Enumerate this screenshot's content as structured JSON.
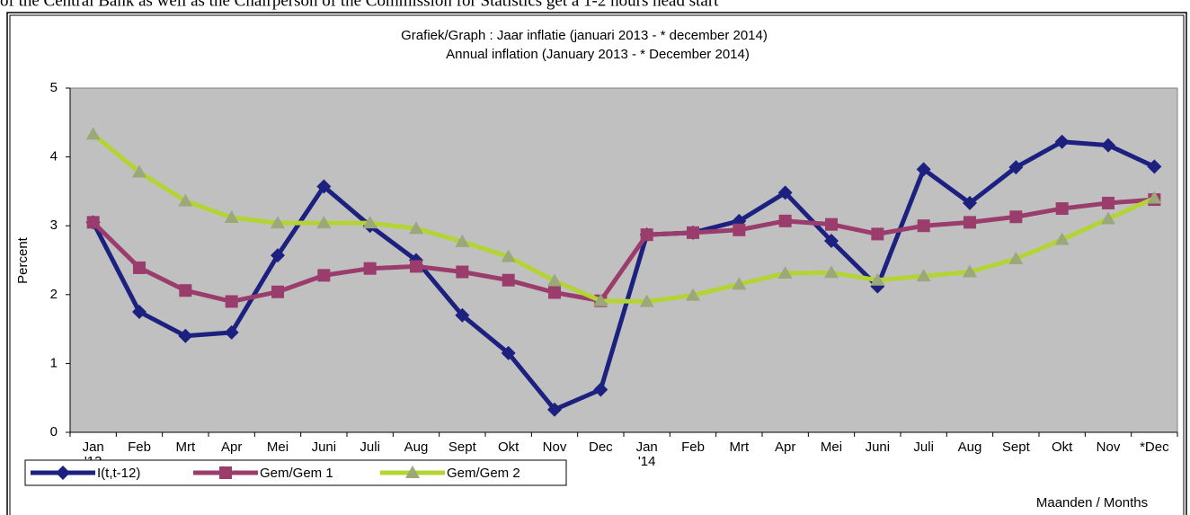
{
  "caption": "of the Central Bank as well as the Chairperson of the Commission for Statistics get a 1-2 hours head start",
  "chart_data": {
    "type": "line",
    "title": "Grafiek/Graph : Jaar inflatie (januari 2013 - * december 2014)",
    "subtitle": "Annual inflation (January 2013 - * December 2014)",
    "y_label": "Percent",
    "x_label": "Maanden / Months",
    "categories": [
      "Jan\n'13",
      "Feb",
      "Mrt",
      "Apr",
      "Mei",
      "Juni",
      "Juli",
      "Aug",
      "Sept",
      "Okt",
      "Nov",
      "Dec",
      "Jan\n'14",
      "Feb",
      "Mrt",
      "Apr",
      "Mei",
      "Juni",
      "Juli",
      "Aug",
      "Sept",
      "Okt",
      "Nov",
      "*Dec"
    ],
    "series": [
      {
        "name": "I(t,t-12)",
        "color": "#1c2180",
        "marker": "diamond",
        "values": [
          3.05,
          1.75,
          1.4,
          1.45,
          2.57,
          3.57,
          3.0,
          2.5,
          1.7,
          1.15,
          0.33,
          0.62,
          2.87,
          2.9,
          3.07,
          3.48,
          2.78,
          2.12,
          3.82,
          3.33,
          3.85,
          4.22,
          4.17,
          3.86
        ]
      },
      {
        "name": "Gem/Gem 1",
        "color": "#9b3d6c",
        "marker": "square",
        "values": [
          3.05,
          2.39,
          2.06,
          1.9,
          2.04,
          2.28,
          2.38,
          2.41,
          2.33,
          2.21,
          2.03,
          1.91,
          2.87,
          2.9,
          2.94,
          3.07,
          3.02,
          2.88,
          3.0,
          3.05,
          3.13,
          3.25,
          3.33,
          3.38
        ]
      },
      {
        "name": "Gem/Gem 2",
        "color": "#b4d334",
        "marker": "triangle",
        "values": [
          4.33,
          3.78,
          3.36,
          3.12,
          3.04,
          3.04,
          3.04,
          2.96,
          2.77,
          2.55,
          2.2,
          1.91,
          1.9,
          1.99,
          2.15,
          2.31,
          2.32,
          2.21,
          2.27,
          2.33,
          2.52,
          2.8,
          3.1,
          3.4
        ]
      }
    ],
    "ylim": [
      0,
      5
    ],
    "yticks": [
      0,
      1,
      2,
      3,
      4,
      5
    ],
    "grid": false,
    "plot_background": "#c0c0c0",
    "legend": "bottom-left"
  }
}
